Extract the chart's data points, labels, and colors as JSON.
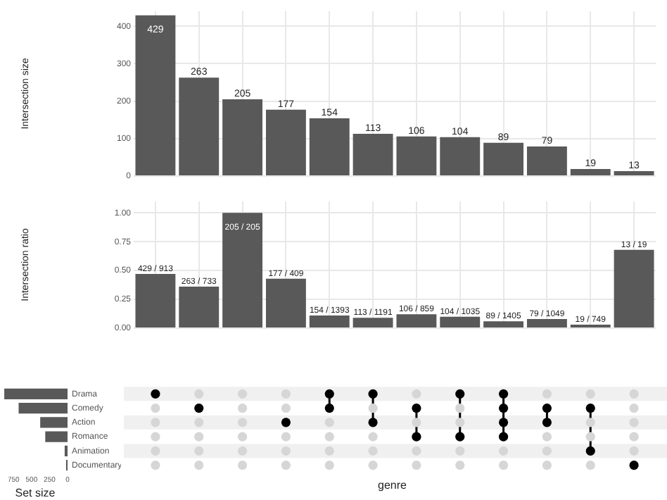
{
  "chart_data": [
    {
      "type": "bar",
      "ylabel": "Intersection size",
      "categories": [
        null,
        null,
        null,
        null,
        null,
        null,
        null,
        null,
        null,
        null,
        null,
        null
      ],
      "values": [
        429,
        263,
        205,
        177,
        154,
        113,
        106,
        104,
        89,
        79,
        19,
        13
      ],
      "color": "#595959",
      "ylim": [
        0,
        440
      ],
      "yticks": [
        0,
        100,
        200,
        300,
        400
      ],
      "grid": true,
      "data_labels": true
    },
    {
      "type": "bar",
      "ylabel": "Intersection ratio",
      "categories": [
        null,
        null,
        null,
        null,
        null,
        null,
        null,
        null,
        null,
        null,
        null,
        null
      ],
      "values": [
        0.47,
        0.36,
        1.0,
        0.43,
        0.11,
        0.09,
        0.12,
        0.1,
        0.06,
        0.08,
        0.03,
        0.68
      ],
      "color": "#595959",
      "annotations": [
        "429 / 913",
        "263 / 733",
        "205 / 205",
        "177 / 409",
        "154 / 1393",
        "113 / 1191",
        "106 / 859",
        "104 / 1035",
        "89 / 1405",
        "79 / 1049",
        "19 / 749",
        "13 / 19"
      ],
      "ylim": [
        0,
        1.1
      ],
      "yticks": [
        {
          "value": 0,
          "label": "0.00"
        },
        {
          "value": 0.25,
          "label": "0.25"
        },
        {
          "value": 0.5,
          "label": "0.50"
        },
        {
          "value": 0.75,
          "label": "0.75"
        },
        {
          "value": 1,
          "label": "1.00"
        }
      ],
      "grid": true
    },
    {
      "type": "bar",
      "orientation": "horizontal",
      "xlabel": "Set size",
      "categories": [
        "Drama",
        "Comedy",
        "Action",
        "Romance",
        "Animation",
        "Documentary"
      ],
      "values": [
        880,
        680,
        380,
        310,
        40,
        20
      ],
      "color": "#595959",
      "xlim": [
        900,
        0
      ],
      "xticks": [
        750,
        500,
        250,
        0
      ],
      "annotations": [
        "genre"
      ]
    }
  ]
}
